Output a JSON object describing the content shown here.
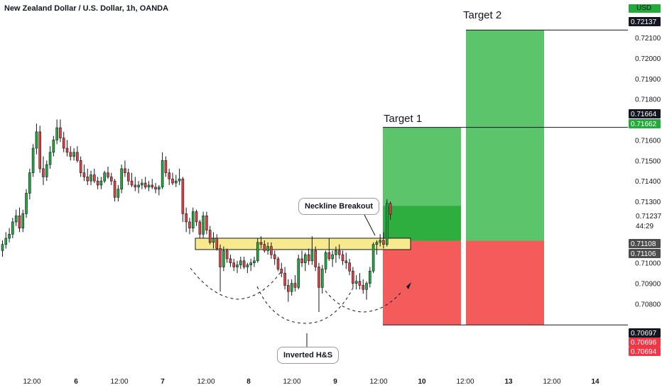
{
  "header": {
    "title": "New Zealand Dollar / U.S. Dollar, 1h, OANDA",
    "currency": "USD"
  },
  "colors": {
    "up": "#22ab3a",
    "down": "#e0423f",
    "zone": "#f7e98e",
    "target_green": "#5cc46a",
    "stop_red": "#f45c5c",
    "tag_black": "#131722",
    "tag_green": "#22ab3a",
    "tag_red": "#f23645"
  },
  "annotations": {
    "neckline": "Neckline Breakout",
    "pattern": "Inverted H&S",
    "target1": "Target 1",
    "target2": "Target 2"
  },
  "chart_data": {
    "type": "candlestick",
    "title": "New Zealand Dollar / U.S. Dollar, 1h, OANDA",
    "ylim": [
      0.707,
      0.7223
    ],
    "y_ticks": [
      "0.72100",
      "0.72000",
      "0.71900",
      "0.71800",
      "0.71600",
      "0.71500",
      "0.71400",
      "0.71300",
      "0.71000",
      "0.70900",
      "0.70800"
    ],
    "x_ticks": [
      {
        "label": "12:00",
        "bold": false
      },
      {
        "label": "6",
        "bold": true
      },
      {
        "label": "12:00",
        "bold": false
      },
      {
        "label": "7",
        "bold": true
      },
      {
        "label": "12:00",
        "bold": false
      },
      {
        "label": "8",
        "bold": true
      },
      {
        "label": "12:00",
        "bold": false
      },
      {
        "label": "9",
        "bold": true
      },
      {
        "label": "12:00",
        "bold": false
      },
      {
        "label": "10",
        "bold": true
      },
      {
        "label": "12:00",
        "bold": false
      },
      {
        "label": "13",
        "bold": true
      },
      {
        "label": "12:00",
        "bold": false
      },
      {
        "label": "14",
        "bold": true
      }
    ],
    "price_tags": [
      {
        "label": "0.72137",
        "value": 0.72137,
        "color": "#131722"
      },
      {
        "label": "0.71664",
        "value": 0.71664,
        "color": "#131722"
      },
      {
        "label": "0.71662",
        "value": 0.71662,
        "color": "#22ab3a"
      },
      {
        "label": "0.71237",
        "value": 0.71237,
        "color": "none"
      },
      {
        "label": "44:29",
        "value": 0.71215,
        "color": "none"
      },
      {
        "label": "0.71108",
        "value": 0.71108,
        "color": "#4d4d4d"
      },
      {
        "label": "0.71106",
        "value": 0.71106,
        "color": "#4d4d4d"
      },
      {
        "label": "0.70697",
        "value": 0.70697,
        "color": "#131722"
      },
      {
        "label": "0.70696",
        "value": 0.70696,
        "color": "#f23645"
      },
      {
        "label": "0.70694",
        "value": 0.70694,
        "color": "#f23645"
      }
    ],
    "levels": {
      "entry": 0.71108,
      "target1": 0.71662,
      "target2": 0.72137,
      "stop": 0.70697,
      "zone_low": 0.71085,
      "zone_high": 0.7111
    },
    "candles": [
      [
        0.7106,
        0.7111,
        0.7103,
        0.7109
      ],
      [
        0.7109,
        0.7115,
        0.7107,
        0.7112
      ],
      [
        0.7112,
        0.7117,
        0.711,
        0.7114
      ],
      [
        0.7114,
        0.7122,
        0.7112,
        0.712
      ],
      [
        0.712,
        0.7126,
        0.7118,
        0.7123
      ],
      [
        0.7123,
        0.7127,
        0.7115,
        0.7117
      ],
      [
        0.7117,
        0.7126,
        0.7115,
        0.7124
      ],
      [
        0.7124,
        0.7136,
        0.7122,
        0.7134
      ],
      [
        0.7134,
        0.7146,
        0.7131,
        0.7144
      ],
      [
        0.7144,
        0.7158,
        0.7142,
        0.7156
      ],
      [
        0.7156,
        0.7168,
        0.7153,
        0.7164
      ],
      [
        0.7164,
        0.7167,
        0.7144,
        0.7146
      ],
      [
        0.7146,
        0.7152,
        0.7138,
        0.7142
      ],
      [
        0.7142,
        0.715,
        0.714,
        0.7148
      ],
      [
        0.7148,
        0.7157,
        0.7146,
        0.7154
      ],
      [
        0.7154,
        0.7162,
        0.7152,
        0.716
      ],
      [
        0.716,
        0.717,
        0.7158,
        0.7166
      ],
      [
        0.7166,
        0.717,
        0.7159,
        0.7161
      ],
      [
        0.7161,
        0.7164,
        0.7154,
        0.7156
      ],
      [
        0.7156,
        0.716,
        0.7152,
        0.7154
      ],
      [
        0.7154,
        0.7157,
        0.715,
        0.7152
      ],
      [
        0.7152,
        0.7156,
        0.715,
        0.7154
      ],
      [
        0.7154,
        0.7157,
        0.7149,
        0.715
      ],
      [
        0.715,
        0.7152,
        0.7142,
        0.7144
      ],
      [
        0.7144,
        0.7148,
        0.714,
        0.7142
      ],
      [
        0.7142,
        0.7146,
        0.7138,
        0.714
      ],
      [
        0.714,
        0.7145,
        0.7138,
        0.7143
      ],
      [
        0.7143,
        0.7146,
        0.7139,
        0.714
      ],
      [
        0.714,
        0.7142,
        0.7136,
        0.7138
      ],
      [
        0.7138,
        0.7142,
        0.7136,
        0.714
      ],
      [
        0.714,
        0.7145,
        0.7139,
        0.7144
      ],
      [
        0.7144,
        0.7147,
        0.7141,
        0.7142
      ],
      [
        0.7142,
        0.7144,
        0.7138,
        0.714
      ],
      [
        0.714,
        0.7141,
        0.713,
        0.7132
      ],
      [
        0.7132,
        0.7138,
        0.713,
        0.7136
      ],
      [
        0.7136,
        0.7148,
        0.7134,
        0.7146
      ],
      [
        0.7146,
        0.715,
        0.7142,
        0.7144
      ],
      [
        0.7144,
        0.7146,
        0.7138,
        0.714
      ],
      [
        0.714,
        0.7144,
        0.7137,
        0.7138
      ],
      [
        0.7138,
        0.7142,
        0.7135,
        0.7137
      ],
      [
        0.7137,
        0.714,
        0.7134,
        0.7138
      ],
      [
        0.7138,
        0.7141,
        0.7136,
        0.7139
      ],
      [
        0.7139,
        0.7142,
        0.7136,
        0.7137
      ],
      [
        0.7137,
        0.714,
        0.7135,
        0.7138
      ],
      [
        0.7138,
        0.7141,
        0.7136,
        0.7137
      ],
      [
        0.7137,
        0.7139,
        0.7134,
        0.7136
      ],
      [
        0.7136,
        0.7138,
        0.7133,
        0.7137
      ],
      [
        0.7137,
        0.7154,
        0.7136,
        0.715
      ],
      [
        0.715,
        0.7152,
        0.7142,
        0.7144
      ],
      [
        0.7144,
        0.7146,
        0.7138,
        0.7141
      ],
      [
        0.7141,
        0.7144,
        0.7138,
        0.7139
      ],
      [
        0.7139,
        0.7143,
        0.7137,
        0.714
      ],
      [
        0.714,
        0.7146,
        0.7138,
        0.7141
      ],
      [
        0.7141,
        0.7142,
        0.712,
        0.7124
      ],
      [
        0.7124,
        0.7127,
        0.7115,
        0.712
      ],
      [
        0.712,
        0.7122,
        0.7114,
        0.7117
      ],
      [
        0.7117,
        0.7127,
        0.7115,
        0.7125
      ],
      [
        0.7125,
        0.7126,
        0.7118,
        0.712
      ],
      [
        0.712,
        0.7121,
        0.7112,
        0.7114
      ],
      [
        0.7114,
        0.7125,
        0.7112,
        0.7123
      ],
      [
        0.7123,
        0.7125,
        0.7114,
        0.7116
      ],
      [
        0.7116,
        0.7118,
        0.7109,
        0.711
      ],
      [
        0.711,
        0.7115,
        0.7107,
        0.7112
      ],
      [
        0.7112,
        0.7114,
        0.7106,
        0.7107
      ],
      [
        0.7107,
        0.7109,
        0.7086,
        0.7098
      ],
      [
        0.7098,
        0.7108,
        0.7096,
        0.7106
      ],
      [
        0.7106,
        0.7107,
        0.71,
        0.7102
      ],
      [
        0.7102,
        0.7104,
        0.7098,
        0.71
      ],
      [
        0.71,
        0.7102,
        0.7096,
        0.7098
      ],
      [
        0.7098,
        0.7101,
        0.7095,
        0.7099
      ],
      [
        0.7099,
        0.7103,
        0.7097,
        0.7101
      ],
      [
        0.7101,
        0.7103,
        0.7097,
        0.7098
      ],
      [
        0.7098,
        0.71,
        0.7095,
        0.7099
      ],
      [
        0.7099,
        0.7102,
        0.7096,
        0.71
      ],
      [
        0.71,
        0.7103,
        0.7098,
        0.7101
      ],
      [
        0.7101,
        0.7112,
        0.71,
        0.711
      ],
      [
        0.711,
        0.7113,
        0.7107,
        0.7109
      ],
      [
        0.7109,
        0.7111,
        0.7105,
        0.7106
      ],
      [
        0.7106,
        0.711,
        0.7104,
        0.7108
      ],
      [
        0.7108,
        0.711,
        0.7102,
        0.7104
      ],
      [
        0.7104,
        0.7106,
        0.7099,
        0.7102
      ],
      [
        0.7102,
        0.7103,
        0.7096,
        0.7097
      ],
      [
        0.7097,
        0.71,
        0.7093,
        0.7095
      ],
      [
        0.7095,
        0.7098,
        0.7087,
        0.7089
      ],
      [
        0.7089,
        0.7092,
        0.7081,
        0.7086
      ],
      [
        0.7086,
        0.7092,
        0.7084,
        0.709
      ],
      [
        0.709,
        0.7094,
        0.7086,
        0.7088
      ],
      [
        0.7088,
        0.7104,
        0.7087,
        0.7102
      ],
      [
        0.7102,
        0.7106,
        0.7098,
        0.71
      ],
      [
        0.71,
        0.7105,
        0.7096,
        0.7104
      ],
      [
        0.7104,
        0.7107,
        0.7099,
        0.7101
      ],
      [
        0.7101,
        0.7113,
        0.7099,
        0.7106
      ],
      [
        0.7106,
        0.7108,
        0.7096,
        0.7098
      ],
      [
        0.7098,
        0.71,
        0.7076,
        0.7088
      ],
      [
        0.7088,
        0.7099,
        0.7085,
        0.7097
      ],
      [
        0.7097,
        0.7106,
        0.7095,
        0.7105
      ],
      [
        0.7105,
        0.7112,
        0.7101,
        0.7102
      ],
      [
        0.7102,
        0.7106,
        0.7098,
        0.7104
      ],
      [
        0.7104,
        0.7108,
        0.71,
        0.7106
      ],
      [
        0.7106,
        0.7109,
        0.7102,
        0.7104
      ],
      [
        0.7104,
        0.7106,
        0.7099,
        0.7101
      ],
      [
        0.7101,
        0.7105,
        0.7097,
        0.71
      ],
      [
        0.71,
        0.7102,
        0.7094,
        0.7096
      ],
      [
        0.7096,
        0.7098,
        0.7088,
        0.709
      ],
      [
        0.709,
        0.7094,
        0.7087,
        0.7091
      ],
      [
        0.7091,
        0.7095,
        0.7087,
        0.7089
      ],
      [
        0.7089,
        0.7092,
        0.7085,
        0.7087
      ],
      [
        0.7087,
        0.7091,
        0.7082,
        0.709
      ],
      [
        0.709,
        0.7098,
        0.7088,
        0.7096
      ],
      [
        0.7096,
        0.711,
        0.7095,
        0.7109
      ],
      [
        0.7109,
        0.7111,
        0.7104,
        0.711
      ],
      [
        0.711,
        0.7114,
        0.7108,
        0.7111
      ],
      [
        0.7111,
        0.7115,
        0.7107,
        0.7109
      ],
      [
        0.7109,
        0.7131,
        0.7108,
        0.7129
      ],
      [
        0.7129,
        0.713,
        0.7121,
        0.71237
      ]
    ]
  }
}
